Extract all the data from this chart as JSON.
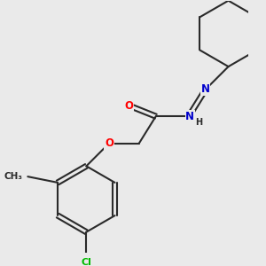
{
  "background_color": "#eaeaea",
  "bond_color": "#2a2a2a",
  "bond_width": 1.5,
  "atom_colors": {
    "O": "#ff0000",
    "N": "#0000cc",
    "Cl": "#00bb00",
    "C": "#2a2a2a",
    "H": "#2a2a2a"
  },
  "font_size_atom": 8.5,
  "font_size_small": 7.0
}
